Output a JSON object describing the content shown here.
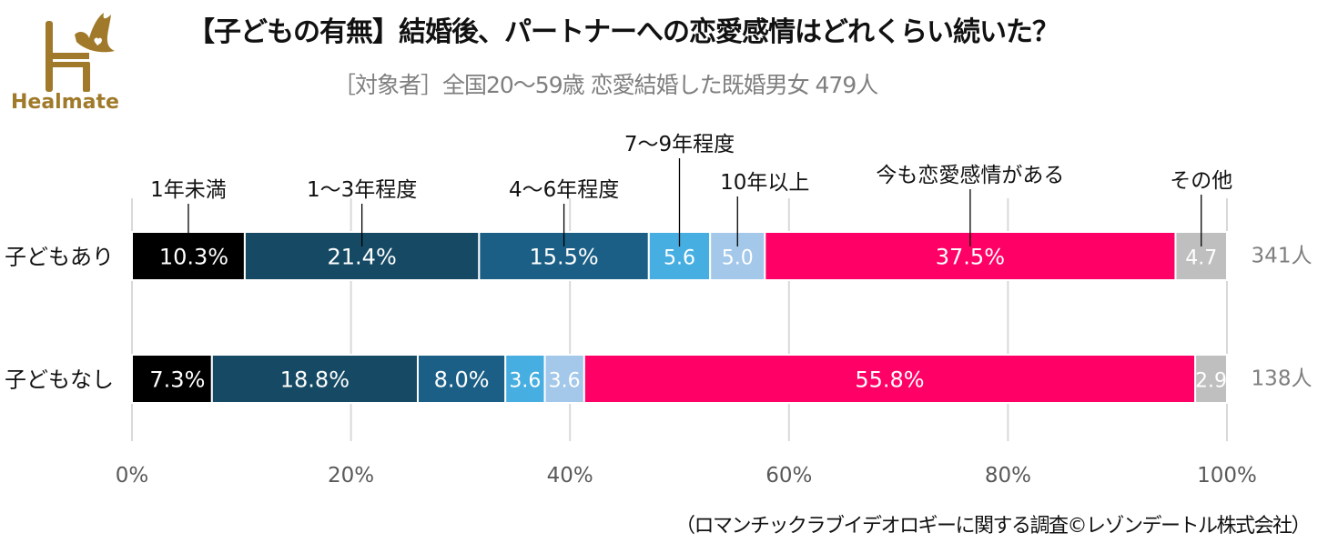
{
  "brand": {
    "logo_icon": "healmate-chair-bird-icon",
    "name": "Healmate",
    "color": "#a07a2a"
  },
  "header": {
    "title": "【子どもの有無】結婚後、パートナーへの恋愛感情はどれくらい続いた？",
    "subtitle": "［対象者］全国20～59歳 恋愛結婚した既婚男女 479人"
  },
  "footer": {
    "source": "（ロマンチックラブイデオロギーに関する調査©レゾンデートル株式会社）"
  },
  "chart_data": {
    "type": "bar",
    "orientation": "horizontal",
    "stacked": true,
    "title": "【子どもの有無】結婚後、パートナーへの恋愛感情はどれくらい続いた？",
    "xlabel": "",
    "ylabel": "",
    "xlim": [
      0,
      100
    ],
    "x_ticks": [
      "0%",
      "20%",
      "40%",
      "60%",
      "80%",
      "100%"
    ],
    "grid": true,
    "legend": "callout labels above first bar",
    "categories": [
      "子どもあり",
      "子どもなし"
    ],
    "category_counts": [
      "341人",
      "138人"
    ],
    "series": [
      {
        "name": "1年未満",
        "color": "#000000",
        "values": [
          10.3,
          7.3
        ],
        "labels": [
          "10.3%",
          "7.3%"
        ]
      },
      {
        "name": "1～3年程度",
        "color": "#164a64",
        "values": [
          21.4,
          18.8
        ],
        "labels": [
          "21.4%",
          "18.8%"
        ]
      },
      {
        "name": "4～6年程度",
        "color": "#1b5f86",
        "values": [
          15.5,
          8.0
        ],
        "labels": [
          "15.5%",
          "8.0%"
        ]
      },
      {
        "name": "7～9年程度",
        "color": "#46aee0",
        "values": [
          5.6,
          3.6
        ],
        "labels": [
          "5.6",
          "3.6"
        ]
      },
      {
        "name": "10年以上",
        "color": "#a3c8ea",
        "values": [
          5.0,
          3.6
        ],
        "labels": [
          "5.0",
          "3.6"
        ]
      },
      {
        "name": "今も恋愛感情がある",
        "color": "#ff0066",
        "values": [
          37.5,
          55.8
        ],
        "labels": [
          "37.5%",
          "55.8%"
        ]
      },
      {
        "name": "その他",
        "color": "#bfbfbf",
        "values": [
          4.7,
          2.9
        ],
        "labels": [
          "4.7",
          "2.9"
        ]
      }
    ]
  }
}
